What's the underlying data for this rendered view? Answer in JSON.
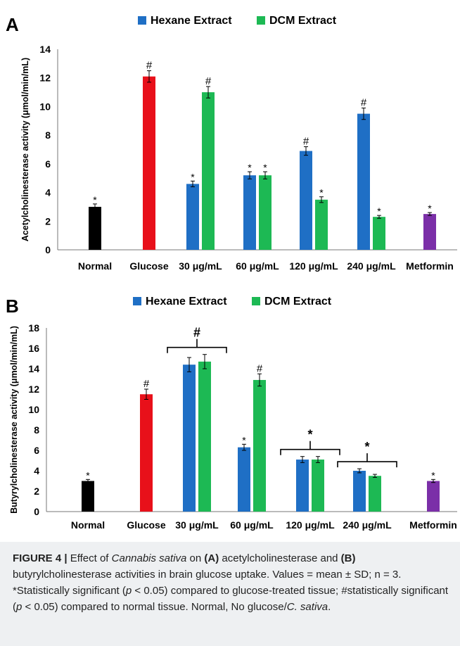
{
  "chart_data": [
    {
      "panel_label": "A",
      "type": "bar",
      "ylabel": "Acetylcholinesterase activity (μmol/min/mL)",
      "ylim": [
        0,
        14
      ],
      "yticks": [
        0,
        2,
        4,
        6,
        8,
        10,
        12,
        14
      ],
      "categories": [
        "Normal",
        "Glucose",
        "30 μg/mL",
        "60 μg/mL",
        "120 μg/mL",
        "240 μg/mL",
        "Metformin"
      ],
      "legend": {
        "placement": "top",
        "entries": [
          {
            "name": "Hexane Extract",
            "color": "#1f6fc5"
          },
          {
            "name": "DCM Extract",
            "color": "#1db954"
          }
        ]
      },
      "bars": [
        {
          "category": "Normal",
          "series": "control",
          "color": "#000000",
          "value": 3.0,
          "error": 0.2,
          "marker": "*"
        },
        {
          "category": "Glucose",
          "series": "control",
          "color": "#e8101a",
          "value": 12.1,
          "error": 0.4,
          "marker": "#"
        },
        {
          "category": "30 μg/mL",
          "series": "Hexane Extract",
          "color": "#1f6fc5",
          "value": 4.6,
          "error": 0.2,
          "marker": "*"
        },
        {
          "category": "30 μg/mL",
          "series": "DCM Extract",
          "color": "#1db954",
          "value": 11.0,
          "error": 0.4,
          "marker": "#"
        },
        {
          "category": "60 μg/mL",
          "series": "Hexane Extract",
          "color": "#1f6fc5",
          "value": 5.2,
          "error": 0.25,
          "marker": "*"
        },
        {
          "category": "60 μg/mL",
          "series": "DCM Extract",
          "color": "#1db954",
          "value": 5.2,
          "error": 0.25,
          "marker": "*"
        },
        {
          "category": "120 μg/mL",
          "series": "Hexane Extract",
          "color": "#1f6fc5",
          "value": 6.9,
          "error": 0.3,
          "marker": "#"
        },
        {
          "category": "120 μg/mL",
          "series": "DCM Extract",
          "color": "#1db954",
          "value": 3.5,
          "error": 0.2,
          "marker": "*"
        },
        {
          "category": "240 μg/mL",
          "series": "Hexane Extract",
          "color": "#1f6fc5",
          "value": 9.5,
          "error": 0.4,
          "marker": "#"
        },
        {
          "category": "240 μg/mL",
          "series": "DCM Extract",
          "color": "#1db954",
          "value": 2.3,
          "error": 0.1,
          "marker": "*"
        },
        {
          "category": "Metformin",
          "series": "control",
          "color": "#7b2fa8",
          "value": 2.5,
          "error": 0.1,
          "marker": "*"
        }
      ]
    },
    {
      "panel_label": "B",
      "type": "bar",
      "ylabel": "Butyrylcholinesterase activity (μmol/min/mL)",
      "ylim": [
        0,
        18
      ],
      "yticks": [
        0,
        2,
        4,
        6,
        8,
        10,
        12,
        14,
        16,
        18
      ],
      "categories": [
        "Normal",
        "Glucose",
        "30 μg/mL",
        "60 μg/mL",
        "120 μg/mL",
        "240 μg/mL",
        "Metformin"
      ],
      "legend": {
        "placement": "top",
        "entries": [
          {
            "name": "Hexane Extract",
            "color": "#1f6fc5"
          },
          {
            "name": "DCM Extract",
            "color": "#1db954"
          }
        ]
      },
      "bars": [
        {
          "category": "Normal",
          "series": "control",
          "color": "#000000",
          "value": 3.0,
          "error": 0.15,
          "marker": "*"
        },
        {
          "category": "Glucose",
          "series": "control",
          "color": "#e8101a",
          "value": 11.5,
          "error": 0.5,
          "marker": "#"
        },
        {
          "category": "30 μg/mL",
          "series": "Hexane Extract",
          "color": "#1f6fc5",
          "value": 14.4,
          "error": 0.7,
          "marker": ""
        },
        {
          "category": "30 μg/mL",
          "series": "DCM Extract",
          "color": "#1db954",
          "value": 14.7,
          "error": 0.7,
          "marker": ""
        },
        {
          "category": "60 μg/mL",
          "series": "Hexane Extract",
          "color": "#1f6fc5",
          "value": 6.3,
          "error": 0.3,
          "marker": "*"
        },
        {
          "category": "60 μg/mL",
          "series": "DCM Extract",
          "color": "#1db954",
          "value": 12.9,
          "error": 0.6,
          "marker": "#"
        },
        {
          "category": "120 μg/mL",
          "series": "Hexane Extract",
          "color": "#1f6fc5",
          "value": 5.1,
          "error": 0.3,
          "marker": ""
        },
        {
          "category": "120 μg/mL",
          "series": "DCM Extract",
          "color": "#1db954",
          "value": 5.1,
          "error": 0.3,
          "marker": ""
        },
        {
          "category": "240 μg/mL",
          "series": "Hexane Extract",
          "color": "#1f6fc5",
          "value": 4.0,
          "error": 0.2,
          "marker": ""
        },
        {
          "category": "240 μg/mL",
          "series": "DCM Extract",
          "color": "#1db954",
          "value": 3.5,
          "error": 0.15,
          "marker": ""
        },
        {
          "category": "Metformin",
          "series": "control",
          "color": "#7b2fa8",
          "value": 3.0,
          "error": 0.15,
          "marker": "*"
        }
      ],
      "group_brackets": [
        {
          "categories": "30 μg/mL",
          "marker": "#"
        },
        {
          "categories": "120 μg/mL",
          "marker": "*"
        },
        {
          "categories": "240 μg/mL",
          "marker": "*"
        }
      ]
    }
  ],
  "caption": {
    "label": "FIGURE 4 |",
    "t1": " Effect of ",
    "species": "Cannabis sativa",
    "t2": " on ",
    "a": "(A)",
    "t3": " acetylcholinesterase and ",
    "b": "(B)",
    "t4": " butyrylcholinesterase activities in brain glucose uptake. Values = mean ± SD; n = 3. *Statistically significant (",
    "p1": "p",
    "t5": " < 0.05) compared to glucose-treated tissue; #statistically significant (",
    "p2": "p",
    "t6": " < 0.05) compared to normal tissue. Normal, No glucose/",
    "species_short": "C. sativa",
    "t7": "."
  }
}
